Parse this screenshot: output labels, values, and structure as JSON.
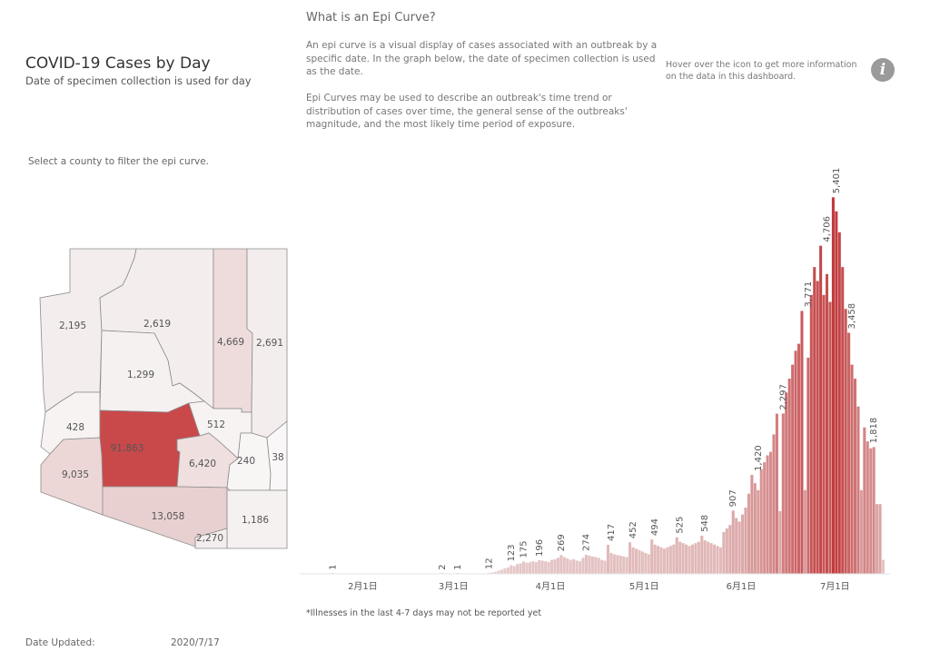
{
  "header": {
    "title": "COVID-19 Cases by Day",
    "subtitle": "Date of specimen collection is used for day"
  },
  "info": {
    "heading": "What is an Epi Curve?",
    "paragraph1": "An epi curve is a visual display of cases associated with an outbreak by a specific date. In the graph below, the date of specimen collection is used as the date.",
    "paragraph2": "Epi Curves may be used to describe an outbreak's time trend or distribution of cases over time, the general sense of the outbreaks' magnitude, and the most likely time period of exposure.",
    "hover_text": "Hover over the icon to get more information on the data in this dashboard.",
    "icon": "info-icon",
    "icon_glyph": "i"
  },
  "map": {
    "instruction": "Select a county to filter the epi curve.",
    "counties": [
      {
        "id": "mohave",
        "cases": "2,195",
        "color": "#f3eded"
      },
      {
        "id": "coconino",
        "cases": "2,619",
        "color": "#f3eded"
      },
      {
        "id": "navajo",
        "cases": "4,669",
        "color": "#eedcdc"
      },
      {
        "id": "apache",
        "cases": "2,691",
        "color": "#f3eded"
      },
      {
        "id": "yavapai",
        "cases": "1,299",
        "color": "#f6f1f1"
      },
      {
        "id": "la-paz",
        "cases": "428",
        "color": "#f7f3f3"
      },
      {
        "id": "maricopa",
        "cases": "91,863",
        "color": "#c9494b"
      },
      {
        "id": "gila",
        "cases": "512",
        "color": "#f7f3f3"
      },
      {
        "id": "yuma",
        "cases": "9,035",
        "color": "#ecd6d6"
      },
      {
        "id": "pinal",
        "cases": "6,420",
        "color": "#efdfdf"
      },
      {
        "id": "graham",
        "cases": "240",
        "color": "#f8f5f5"
      },
      {
        "id": "greenlee",
        "cases": "38",
        "color": "#f9f7f7"
      },
      {
        "id": "pima",
        "cases": "13,058",
        "color": "#e8d0d0"
      },
      {
        "id": "cochise",
        "cases": "1,186",
        "color": "#f6f1f1"
      },
      {
        "id": "santa-cruz",
        "cases": "2,270",
        "color": "#f3eded"
      }
    ]
  },
  "chart_data": {
    "type": "bar",
    "title": "",
    "xlabel": "",
    "ylabel": "",
    "x_start": "2020-01-22",
    "x_end": "2020-07-16",
    "xticks": [
      "2月1日",
      "3月1日",
      "4月1日",
      "5月1日",
      "6月1日",
      "7月1日"
    ],
    "xtick_dates": [
      "2020-02-01",
      "2020-03-01",
      "2020-04-01",
      "2020-05-01",
      "2020-06-01",
      "2020-07-01"
    ],
    "ylim": [
      0,
      5600
    ],
    "grid": false,
    "color_low": "#e8d3d3",
    "color_high": "#c0393b",
    "labeled_points": [
      {
        "date": "2020-01-22",
        "value": 1,
        "label": "1"
      },
      {
        "date": "2020-02-26",
        "value": 2,
        "label": "2"
      },
      {
        "date": "2020-03-02",
        "value": 1,
        "label": "1"
      },
      {
        "date": "2020-03-12",
        "value": 12,
        "label": "12"
      },
      {
        "date": "2020-03-19",
        "value": 123,
        "label": "123"
      },
      {
        "date": "2020-03-23",
        "value": 175,
        "label": "175"
      },
      {
        "date": "2020-03-28",
        "value": 196,
        "label": "196"
      },
      {
        "date": "2020-04-04",
        "value": 269,
        "label": "269"
      },
      {
        "date": "2020-04-12",
        "value": 274,
        "label": "274"
      },
      {
        "date": "2020-04-20",
        "value": 417,
        "label": "417"
      },
      {
        "date": "2020-04-27",
        "value": 452,
        "label": "452"
      },
      {
        "date": "2020-05-04",
        "value": 494,
        "label": "494"
      },
      {
        "date": "2020-05-12",
        "value": 525,
        "label": "525"
      },
      {
        "date": "2020-05-20",
        "value": 548,
        "label": "548"
      },
      {
        "date": "2020-05-29",
        "value": 907,
        "label": "907"
      },
      {
        "date": "2020-06-06",
        "value": 1420,
        "label": "1,420"
      },
      {
        "date": "2020-06-14",
        "value": 2297,
        "label": "2,297"
      },
      {
        "date": "2020-06-22",
        "value": 3771,
        "label": "3,771"
      },
      {
        "date": "2020-06-28",
        "value": 4706,
        "label": "4,706"
      },
      {
        "date": "2020-07-01",
        "value": 5401,
        "label": "5,401"
      },
      {
        "date": "2020-07-06",
        "value": 3458,
        "label": "3,458"
      },
      {
        "date": "2020-07-13",
        "value": 1818,
        "label": "1,818"
      }
    ],
    "values": [
      1,
      0,
      0,
      0,
      0,
      0,
      0,
      0,
      0,
      0,
      0,
      0,
      0,
      0,
      0,
      0,
      0,
      0,
      0,
      0,
      0,
      0,
      0,
      0,
      0,
      0,
      0,
      0,
      0,
      0,
      0,
      0,
      0,
      0,
      0,
      2,
      0,
      0,
      0,
      0,
      1,
      0,
      0,
      0,
      0,
      0,
      0,
      0,
      0,
      0,
      12,
      20,
      30,
      45,
      60,
      80,
      90,
      123,
      110,
      140,
      150,
      175,
      160,
      165,
      180,
      170,
      196,
      190,
      180,
      170,
      200,
      210,
      230,
      269,
      240,
      220,
      200,
      210,
      190,
      180,
      230,
      274,
      260,
      250,
      240,
      230,
      200,
      190,
      417,
      300,
      280,
      270,
      260,
      250,
      240,
      452,
      380,
      360,
      340,
      320,
      300,
      280,
      494,
      420,
      400,
      380,
      360,
      380,
      400,
      420,
      525,
      460,
      440,
      420,
      400,
      420,
      440,
      460,
      548,
      480,
      460,
      440,
      420,
      400,
      380,
      600,
      650,
      700,
      907,
      800,
      750,
      850,
      950,
      1150,
      1420,
      1300,
      1200,
      1500,
      1600,
      1700,
      1750,
      2000,
      2297,
      900,
      2300,
      2600,
      2800,
      3000,
      3200,
      3300,
      3771,
      1200,
      3100,
      4000,
      4400,
      4200,
      4706,
      4000,
      4300,
      3900,
      5401,
      5200,
      4900,
      4400,
      3800,
      3458,
      3000,
      2800,
      2400,
      1200,
      2100,
      1900,
      1800,
      1818,
      1000,
      1000,
      200
    ]
  },
  "footnote": "*Illnesses in the last 4-7 days may not be reported yet",
  "updated": {
    "label": "Date Updated:",
    "value": "2020/7/17"
  }
}
